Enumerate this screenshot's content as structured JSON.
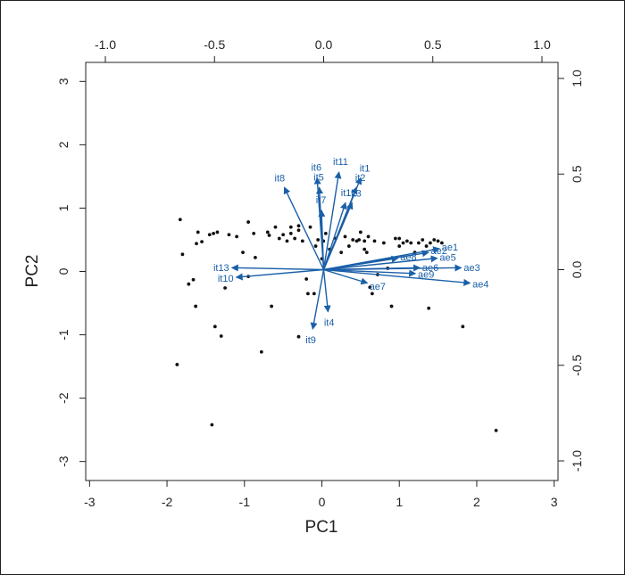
{
  "chart_data": {
    "type": "scatter",
    "title": "",
    "xlabel": "PC1",
    "ylabel": "PC2",
    "xlim": [
      -3.05,
      3.05
    ],
    "ylim": [
      -3.3,
      3.3
    ],
    "x_ticks": [
      -3,
      -2,
      -1,
      0,
      1,
      2,
      3
    ],
    "y_ticks": [
      -3,
      -2,
      -1,
      0,
      1,
      2,
      3
    ],
    "loadings_xlim": [
      -1.0,
      1.0
    ],
    "loadings_ylim": [
      -1.0,
      1.0
    ],
    "top_ticks": [
      "-1.0",
      "-0.5",
      "0.0",
      "0.5",
      "1.0"
    ],
    "right_ticks": [
      "-1.0",
      "-0.5",
      "0.0",
      "0.5",
      "1.0"
    ],
    "grid": false,
    "point_color": "#111111",
    "arrow_color": "#1a5fa8",
    "points": [
      [
        -1.87,
        -1.47
      ],
      [
        -1.83,
        0.82
      ],
      [
        -1.8,
        0.27
      ],
      [
        -1.72,
        -0.2
      ],
      [
        -1.66,
        -0.13
      ],
      [
        -1.62,
        0.44
      ],
      [
        -1.6,
        0.62
      ],
      [
        -1.63,
        -0.55
      ],
      [
        -1.55,
        0.47
      ],
      [
        -1.45,
        0.58
      ],
      [
        -1.4,
        0.6
      ],
      [
        -1.35,
        0.62
      ],
      [
        -1.38,
        -0.87
      ],
      [
        -1.3,
        -1.02
      ],
      [
        -1.25,
        -0.26
      ],
      [
        -1.2,
        0.58
      ],
      [
        -1.1,
        0.55
      ],
      [
        -1.02,
        0.3
      ],
      [
        -0.95,
        -0.08
      ],
      [
        -0.88,
        0.6
      ],
      [
        -0.86,
        0.22
      ],
      [
        -0.78,
        -1.27
      ],
      [
        -0.7,
        0.62
      ],
      [
        -0.68,
        0.57
      ],
      [
        -0.65,
        -0.55
      ],
      [
        -0.6,
        0.7
      ],
      [
        -0.55,
        0.52
      ],
      [
        -0.5,
        0.58
      ],
      [
        -0.45,
        0.48
      ],
      [
        -0.4,
        0.7
      ],
      [
        -0.35,
        0.52
      ],
      [
        -0.3,
        0.72
      ],
      [
        -0.3,
        -1.03
      ],
      [
        -0.25,
        0.48
      ],
      [
        -0.2,
        -0.12
      ],
      [
        -0.18,
        -0.35
      ],
      [
        -0.15,
        0.7
      ],
      [
        -0.1,
        -0.35
      ],
      [
        -0.08,
        0.4
      ],
      [
        -0.05,
        0.5
      ],
      [
        0.0,
        0.2
      ],
      [
        0.02,
        0.48
      ],
      [
        0.1,
        0.35
      ],
      [
        0.18,
        0.52
      ],
      [
        0.25,
        0.3
      ],
      [
        0.3,
        0.55
      ],
      [
        0.35,
        0.4
      ],
      [
        0.4,
        0.5
      ],
      [
        0.45,
        0.48
      ],
      [
        0.48,
        0.5
      ],
      [
        0.5,
        0.62
      ],
      [
        0.55,
        0.48
      ],
      [
        0.58,
        0.3
      ],
      [
        0.6,
        0.55
      ],
      [
        0.62,
        -0.25
      ],
      [
        0.65,
        -0.35
      ],
      [
        0.68,
        0.48
      ],
      [
        0.72,
        -0.05
      ],
      [
        0.8,
        0.45
      ],
      [
        0.85,
        0.05
      ],
      [
        0.9,
        -0.55
      ],
      [
        0.95,
        0.52
      ],
      [
        1.0,
        0.4
      ],
      [
        1.05,
        0.45
      ],
      [
        1.1,
        0.48
      ],
      [
        1.15,
        0.45
      ],
      [
        1.2,
        0.3
      ],
      [
        1.25,
        0.45
      ],
      [
        1.3,
        0.5
      ],
      [
        1.35,
        0.4
      ],
      [
        1.4,
        0.45
      ],
      [
        1.45,
        0.5
      ],
      [
        1.5,
        0.48
      ],
      [
        1.38,
        -0.58
      ],
      [
        1.55,
        0.45
      ],
      [
        1.82,
        -0.87
      ],
      [
        2.25,
        -2.51
      ],
      [
        -1.42,
        -2.42
      ],
      [
        -0.3,
        0.65
      ],
      [
        0.05,
        0.6
      ],
      [
        0.55,
        0.35
      ],
      [
        -0.95,
        0.78
      ],
      [
        -0.4,
        0.6
      ],
      [
        1.0,
        0.52
      ]
    ],
    "loadings": [
      {
        "name": "it1",
        "x": 0.17,
        "y": 0.48
      },
      {
        "name": "it2",
        "x": 0.15,
        "y": 0.43
      },
      {
        "name": "it3",
        "x": 0.13,
        "y": 0.35
      },
      {
        "name": "it4",
        "x": 0.02,
        "y": -0.22
      },
      {
        "name": "it5",
        "x": -0.02,
        "y": 0.43
      },
      {
        "name": "it6",
        "x": -0.03,
        "y": 0.48
      },
      {
        "name": "it7",
        "x": -0.01,
        "y": 0.31
      },
      {
        "name": "it8",
        "x": -0.18,
        "y": 0.43
      },
      {
        "name": "it9",
        "x": -0.05,
        "y": -0.31
      },
      {
        "name": "it10",
        "x": -0.4,
        "y": -0.04
      },
      {
        "name": "it11",
        "x": 0.07,
        "y": 0.51
      },
      {
        "name": "it12",
        "x": 0.1,
        "y": 0.35
      },
      {
        "name": "it13",
        "x": -0.42,
        "y": 0.01
      },
      {
        "name": "ae1",
        "x": 0.53,
        "y": 0.11
      },
      {
        "name": "ae2",
        "x": 0.48,
        "y": 0.09
      },
      {
        "name": "ae3",
        "x": 0.63,
        "y": 0.01
      },
      {
        "name": "ae4",
        "x": 0.67,
        "y": -0.07
      },
      {
        "name": "ae5",
        "x": 0.52,
        "y": 0.06
      },
      {
        "name": "ae6",
        "x": 0.44,
        "y": 0.01
      },
      {
        "name": "ae7",
        "x": 0.2,
        "y": -0.07
      },
      {
        "name": "ae8",
        "x": 0.34,
        "y": 0.06
      },
      {
        "name": "ae9",
        "x": 0.42,
        "y": -0.02
      }
    ]
  }
}
